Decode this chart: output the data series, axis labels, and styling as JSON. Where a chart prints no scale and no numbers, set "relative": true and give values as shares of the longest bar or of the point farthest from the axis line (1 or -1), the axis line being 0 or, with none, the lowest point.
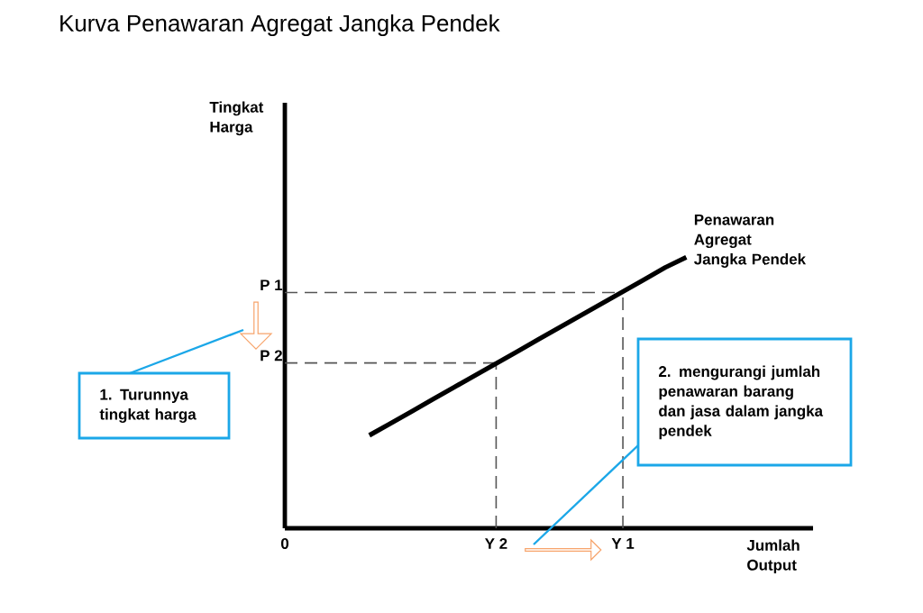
{
  "chart_data": {
    "type": "line",
    "title": "Kurva Penawaran Agregat Jangka Pendek",
    "xlabel": "Jumlah Output",
    "relative": true,
    "legend": false,
    "marker": "none",
    "line_style": "solid",
    "categories": [
      "0",
      null,
      null,
      null,
      null,
      null,
      null,
      null,
      null,
      null,
      "Y 2",
      null,
      null,
      null,
      null,
      null,
      "Y 1",
      null,
      null,
      null,
      null,
      null,
      null,
      null,
      null,
      null
    ],
    "series": [
      {
        "name": "Penawaran Agregat Jangka Pendek",
        "color": "#000000",
        "values": [
          null,
          null,
          null,
          null,
          0.343,
          0.387,
          0.431,
          0.476,
          0.52,
          0.564,
          0.608,
          0.652,
          0.697,
          0.741,
          0.785,
          0.829,
          0.873,
          0.917,
          0.962,
          1,
          null,
          null,
          null,
          null,
          null,
          null
        ]
      }
    ],
    "ref_lines": [
      {
        "axis": "y",
        "value": 0.87,
        "label": "P 1",
        "line_style": "dashed"
      },
      {
        "axis": "y",
        "value": 0.61,
        "label": "P 2",
        "line_style": "dashed"
      },
      {
        "axis": "x",
        "value": "Y 2",
        "line_style": "dashed"
      },
      {
        "axis": "x",
        "value": "Y 1",
        "line_style": "dashed"
      }
    ],
    "annotations": [
      "Tingkat Harga",
      "1. Turunnya tingkat harga",
      "2. mengurangi jumlah penawaran barang dan jasa dalam jangka pendek"
    ]
  }
}
